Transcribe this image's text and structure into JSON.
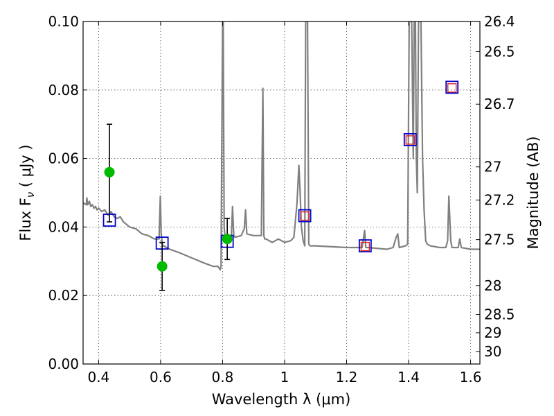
{
  "chart_data": {
    "type": "scatter",
    "xlabel": "Wavelength  λ (μm)",
    "ylabel": "Flux  F",
    "ylabel_sub": "ν",
    "ylabel_unit": " ( μJy )",
    "y2label": "Magnitude (AB)",
    "xlim": [
      0.35,
      1.63
    ],
    "ylim": [
      0.0,
      0.1
    ],
    "grid": true,
    "x_ticks": [
      0.4,
      0.6,
      0.8,
      1.0,
      1.2,
      1.4,
      1.6
    ],
    "x_tick_labels": [
      "0.4",
      "0.6",
      "0.8",
      "1",
      "1.2",
      "1.4",
      "1.6"
    ],
    "y_ticks": [
      0.0,
      0.02,
      0.04,
      0.06,
      0.08,
      0.1
    ],
    "y_tick_labels": [
      "0.00",
      "0.02",
      "0.04",
      "0.06",
      "0.08",
      "0.10"
    ],
    "y2_ticks": [
      {
        "mag": 26.4,
        "label": "26.4"
      },
      {
        "mag": 26.5,
        "label": "26.5"
      },
      {
        "mag": 26.7,
        "label": "26.7"
      },
      {
        "mag": 27.0,
        "label": "27"
      },
      {
        "mag": 27.2,
        "label": "27.2"
      },
      {
        "mag": 27.5,
        "label": "27.5"
      },
      {
        "mag": 28.0,
        "label": "28"
      },
      {
        "mag": 28.5,
        "label": "28.5"
      },
      {
        "mag": 29.0,
        "label": "29"
      },
      {
        "mag": 30.0,
        "label": "30"
      }
    ],
    "series": [
      {
        "style": "sed-model",
        "color": "#808080",
        "x": [
          0.35,
          0.36,
          0.362,
          0.365,
          0.37,
          0.375,
          0.38,
          0.385,
          0.39,
          0.395,
          0.4,
          0.41,
          0.42,
          0.43,
          0.44,
          0.45,
          0.46,
          0.47,
          0.48,
          0.5,
          0.52,
          0.54,
          0.56,
          0.58,
          0.595,
          0.599,
          0.602,
          0.606,
          0.61,
          0.63,
          0.66,
          0.7,
          0.74,
          0.77,
          0.785,
          0.792,
          0.795,
          0.8,
          0.802,
          0.805,
          0.808,
          0.81,
          0.82,
          0.828,
          0.832,
          0.836,
          0.84,
          0.86,
          0.87,
          0.874,
          0.878,
          0.9,
          0.925,
          0.93,
          0.933,
          0.936,
          0.94,
          0.96,
          0.98,
          1.0,
          1.02,
          1.03,
          1.04,
          1.046,
          1.05,
          1.054,
          1.06,
          1.065,
          1.068,
          1.07,
          1.074,
          1.078,
          1.082,
          1.09,
          1.1,
          1.2,
          1.25,
          1.258,
          1.262,
          1.27,
          1.33,
          1.35,
          1.36,
          1.365,
          1.37,
          1.39,
          1.397,
          1.402,
          1.408,
          1.41,
          1.415,
          1.418,
          1.422,
          1.425,
          1.428,
          1.432,
          1.44,
          1.445,
          1.45,
          1.455,
          1.46,
          1.47,
          1.5,
          1.52,
          1.526,
          1.53,
          1.536,
          1.54,
          1.555,
          1.56,
          1.565,
          1.57,
          1.6,
          1.63
        ],
        "y": [
          0.047,
          0.0465,
          0.0485,
          0.0465,
          0.0475,
          0.046,
          0.0465,
          0.0455,
          0.046,
          0.045,
          0.0455,
          0.0445,
          0.045,
          0.0435,
          0.0445,
          0.043,
          0.0425,
          0.043,
          0.0415,
          0.04,
          0.0395,
          0.038,
          0.0375,
          0.0365,
          0.0365,
          0.049,
          0.038,
          0.0345,
          0.0345,
          0.0335,
          0.0325,
          0.031,
          0.0295,
          0.0285,
          0.0285,
          0.0275,
          0.0285,
          0.1,
          0.1,
          0.04,
          0.037,
          0.036,
          0.037,
          0.0365,
          0.046,
          0.0375,
          0.037,
          0.0375,
          0.0395,
          0.045,
          0.038,
          0.0375,
          0.0375,
          0.0805,
          0.0375,
          0.0365,
          0.0365,
          0.0355,
          0.0365,
          0.0355,
          0.036,
          0.037,
          0.047,
          0.058,
          0.05,
          0.04,
          0.036,
          0.0345,
          0.1,
          0.1,
          0.1,
          0.035,
          0.0345,
          0.0345,
          0.0345,
          0.034,
          0.034,
          0.039,
          0.034,
          0.034,
          0.0335,
          0.034,
          0.037,
          0.038,
          0.034,
          0.0345,
          0.035,
          0.1,
          0.1,
          0.1,
          0.06,
          0.1,
          0.1,
          0.06,
          0.05,
          0.1,
          0.1,
          0.06,
          0.045,
          0.036,
          0.035,
          0.0345,
          0.034,
          0.034,
          0.036,
          0.049,
          0.036,
          0.034,
          0.034,
          0.034,
          0.0365,
          0.034,
          0.0335,
          0.0335
        ]
      },
      {
        "style": "model-photometry-blue",
        "color": "#0000cc",
        "x": [
          0.435,
          0.605,
          0.815,
          1.065,
          1.26,
          1.405,
          1.54
        ],
        "y": [
          0.042,
          0.0353,
          0.0358,
          0.0433,
          0.0345,
          0.0655,
          0.0808
        ]
      },
      {
        "style": "model-photometry-red",
        "color": "#dd2222",
        "x": [
          1.065,
          1.26,
          1.405,
          1.54
        ],
        "y": [
          0.0432,
          0.0343,
          0.0654,
          0.0806
        ]
      },
      {
        "style": "observed-photometry",
        "color": "#00bb00",
        "x": [
          0.435,
          0.605,
          0.815
        ],
        "y": [
          0.056,
          0.0285,
          0.0365
        ],
        "err_low": [
          0.0415,
          0.0215,
          0.0305
        ],
        "err_high": [
          0.07,
          0.0355,
          0.0425
        ]
      }
    ]
  }
}
